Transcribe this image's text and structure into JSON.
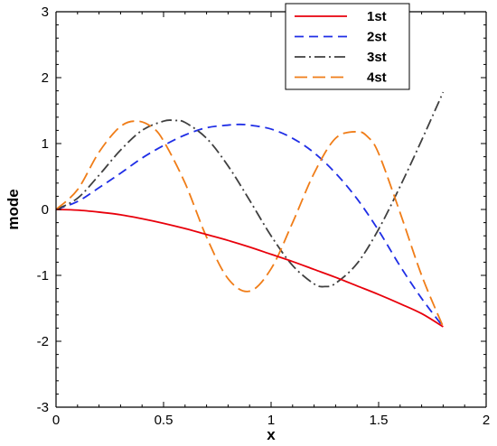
{
  "chart_data": {
    "type": "line",
    "xlabel": "x",
    "ylabel": "mode",
    "xlim": [
      0,
      2
    ],
    "ylim": [
      -3,
      3
    ],
    "x_ticks": [
      "0",
      "0.5",
      "1",
      "1.5",
      "2"
    ],
    "y_ticks": [
      "-3",
      "-2",
      "-1",
      "0",
      "1",
      "2",
      "3"
    ],
    "grid": false,
    "legend_position": "top-right",
    "series": [
      {
        "name": "1st",
        "color": "#e8000b",
        "style": "solid",
        "x": [
          0,
          0.1,
          0.2,
          0.3,
          0.4,
          0.5,
          0.6,
          0.7,
          0.8,
          0.9,
          1.0,
          1.1,
          1.2,
          1.3,
          1.4,
          1.5,
          1.6,
          1.7,
          1.8
        ],
        "y": [
          0,
          -0.01,
          -0.04,
          -0.08,
          -0.14,
          -0.21,
          -0.29,
          -0.38,
          -0.47,
          -0.57,
          -0.68,
          -0.79,
          -0.91,
          -1.03,
          -1.16,
          -1.29,
          -1.43,
          -1.58,
          -1.78
        ]
      },
      {
        "name": "2st",
        "color": "#1f2ee6",
        "style": "dashed",
        "x": [
          0,
          0.1,
          0.2,
          0.3,
          0.4,
          0.5,
          0.6,
          0.7,
          0.8,
          0.85,
          0.9,
          1.0,
          1.1,
          1.2,
          1.3,
          1.4,
          1.5,
          1.6,
          1.7,
          1.8
        ],
        "y": [
          0,
          0.12,
          0.33,
          0.55,
          0.78,
          0.97,
          1.13,
          1.24,
          1.28,
          1.29,
          1.28,
          1.22,
          1.08,
          0.86,
          0.55,
          0.16,
          -0.32,
          -0.86,
          -1.35,
          -1.78
        ]
      },
      {
        "name": "3st",
        "color": "#404040",
        "style": "dashdot",
        "x": [
          0,
          0.1,
          0.2,
          0.3,
          0.4,
          0.5,
          0.55,
          0.6,
          0.7,
          0.8,
          0.9,
          1.0,
          1.1,
          1.2,
          1.25,
          1.3,
          1.4,
          1.5,
          1.6,
          1.7,
          1.8
        ],
        "y": [
          0,
          0.17,
          0.52,
          0.9,
          1.2,
          1.34,
          1.35,
          1.32,
          1.08,
          0.66,
          0.14,
          -0.4,
          -0.85,
          -1.13,
          -1.17,
          -1.12,
          -0.82,
          -0.3,
          0.35,
          1.05,
          1.78
        ]
      },
      {
        "name": "4st",
        "color": "#f07d18",
        "style": "longdash",
        "x": [
          0,
          0.1,
          0.2,
          0.3,
          0.38,
          0.45,
          0.5,
          0.6,
          0.7,
          0.8,
          0.9,
          1.0,
          1.1,
          1.2,
          1.3,
          1.4,
          1.45,
          1.5,
          1.6,
          1.7,
          1.8
        ],
        "y": [
          0,
          0.3,
          0.87,
          1.26,
          1.34,
          1.24,
          1.04,
          0.4,
          -0.42,
          -1.05,
          -1.24,
          -0.9,
          -0.2,
          0.55,
          1.08,
          1.18,
          1.1,
          0.85,
          -0.05,
          -1.0,
          -1.78
        ]
      }
    ]
  }
}
